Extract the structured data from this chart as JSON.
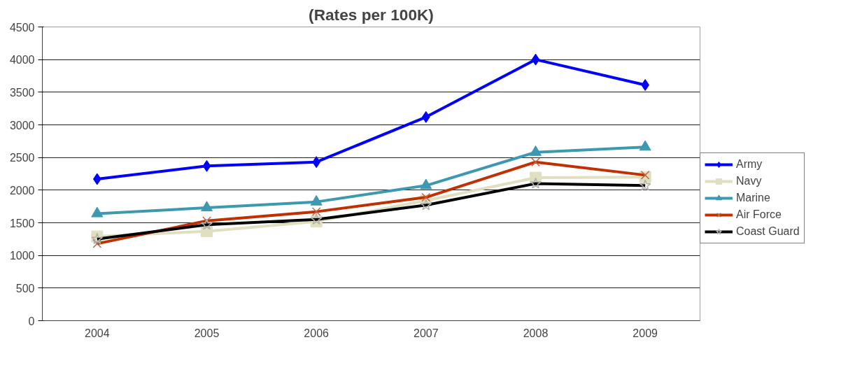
{
  "chart_data": {
    "type": "line",
    "title": "(Rates per 100K)",
    "categories": [
      "2004",
      "2005",
      "2006",
      "2007",
      "2008",
      "2009"
    ],
    "series": [
      {
        "name": "Army",
        "color": "#0000ff",
        "marker": "diamond",
        "values": [
          2170,
          2370,
          2430,
          3120,
          4000,
          3610
        ]
      },
      {
        "name": "Navy",
        "color": "#e0dfc0",
        "marker": "square",
        "values": [
          1290,
          1370,
          1520,
          1840,
          2190,
          2200
        ]
      },
      {
        "name": "Marine",
        "color": "#3d99b0",
        "marker": "triangle",
        "values": [
          1640,
          1730,
          1820,
          2070,
          2580,
          2660
        ]
      },
      {
        "name": "Air Force",
        "color": "#c03000",
        "marker": "cross",
        "values": [
          1180,
          1530,
          1670,
          1890,
          2430,
          2230
        ]
      },
      {
        "name": "Coast Guard",
        "color": "#000000",
        "marker": "star",
        "values": [
          1250,
          1470,
          1550,
          1770,
          2100,
          2070
        ]
      }
    ],
    "ylim": [
      0,
      4500
    ],
    "yticks": [
      0,
      500,
      1000,
      1500,
      2000,
      2500,
      3000,
      3500,
      4000,
      4500
    ],
    "grid": "y",
    "legend": "right"
  }
}
